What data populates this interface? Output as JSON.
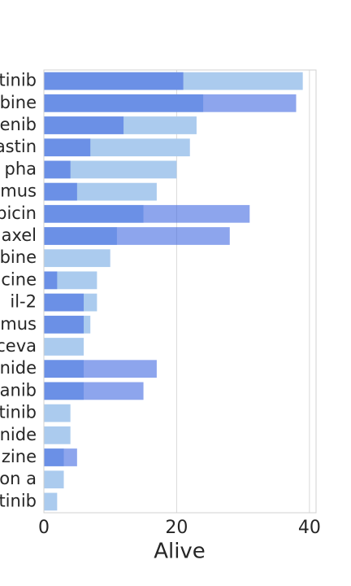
{
  "chart_data": {
    "type": "barh",
    "xlabel": "Alive",
    "categories": [
      "tinib",
      "bine",
      "enib",
      "astin",
      "pha",
      "mus",
      "bicin",
      "axel",
      "bine",
      "cine",
      "il-2",
      "mus",
      "ceva",
      "nide",
      "anib",
      "tinib",
      "nide",
      "zine",
      "on a",
      "tinib"
    ],
    "series": [
      {
        "color": "#abcbee",
        "opacity": 1,
        "values": [
          39,
          24,
          23,
          22,
          20,
          17,
          15,
          11,
          10,
          8,
          8,
          7,
          6,
          6,
          6,
          4,
          4,
          3,
          3,
          2
        ]
      },
      {
        "color": "#4169e1",
        "opacity": 0.6,
        "values": [
          21,
          38,
          12,
          7,
          4,
          5,
          31,
          28,
          0,
          2,
          6,
          6,
          0,
          17,
          15,
          0,
          0,
          5,
          0,
          0
        ]
      }
    ],
    "xlim": [
      0,
      41
    ],
    "xticks": [
      0,
      20,
      40
    ],
    "grid": true
  }
}
